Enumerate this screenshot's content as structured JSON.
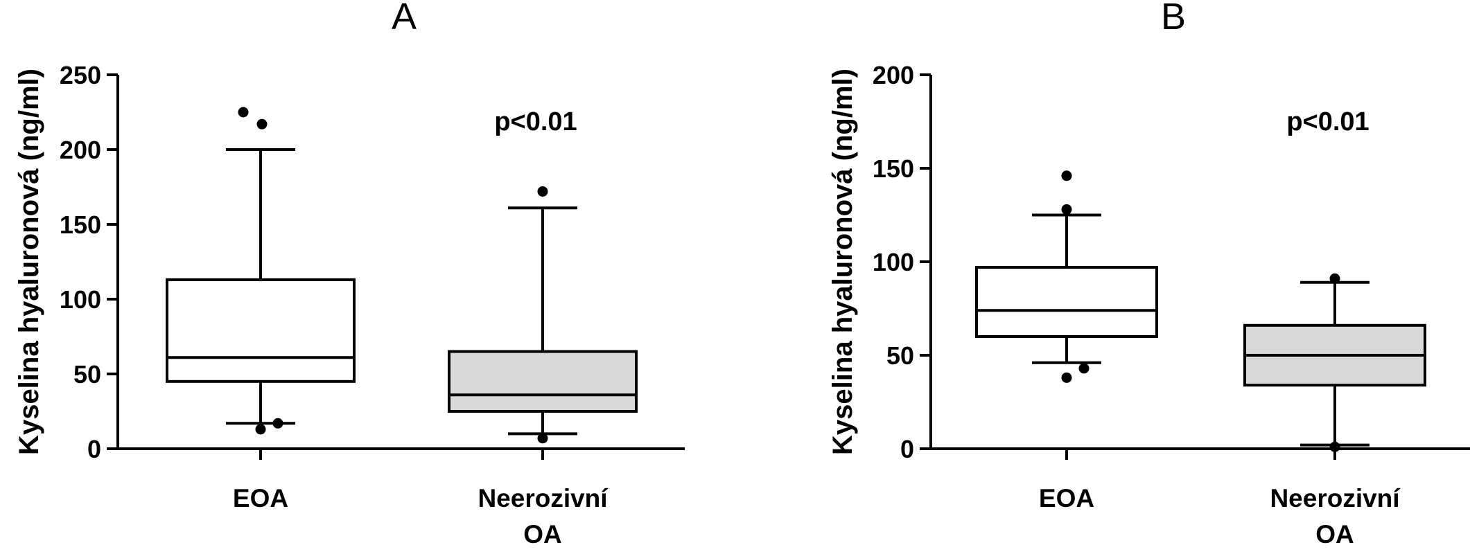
{
  "chart_data": [
    {
      "type": "box",
      "title": "A",
      "ylabel": "Kyselina hyaluronová (ng/ml)",
      "ylim": [
        0,
        250
      ],
      "yticks": [
        0,
        50,
        100,
        150,
        200,
        250
      ],
      "annotation": "p<0.01",
      "groups": [
        {
          "label": "EOA",
          "fill": "#ffffff",
          "whisker_low": 17,
          "q1": 45,
          "median": 61,
          "q3": 113,
          "whisker_high": 200,
          "outliers": [
            225,
            217,
            13,
            17
          ]
        },
        {
          "label": "Neerozivní OA",
          "fill": "#d9d9d9",
          "whisker_low": 10,
          "q1": 25,
          "median": 36,
          "q3": 65,
          "whisker_high": 161,
          "outliers": [
            172,
            7
          ]
        }
      ]
    },
    {
      "type": "box",
      "title": "B",
      "ylabel": "Kyselina hyaluronová (ng/ml)",
      "ylim": [
        0,
        200
      ],
      "yticks": [
        0,
        50,
        100,
        150,
        200
      ],
      "annotation": "p<0.01",
      "groups": [
        {
          "label": "EOA",
          "fill": "#ffffff",
          "whisker_low": 46,
          "q1": 60,
          "median": 74,
          "q3": 97,
          "whisker_high": 125,
          "outliers": [
            146,
            128,
            38,
            43
          ]
        },
        {
          "label": "Neerozivní OA",
          "fill": "#d9d9d9",
          "whisker_low": 2,
          "q1": 34,
          "median": 50,
          "q3": 66,
          "whisker_high": 89,
          "outliers": [
            91,
            1
          ]
        }
      ]
    }
  ]
}
